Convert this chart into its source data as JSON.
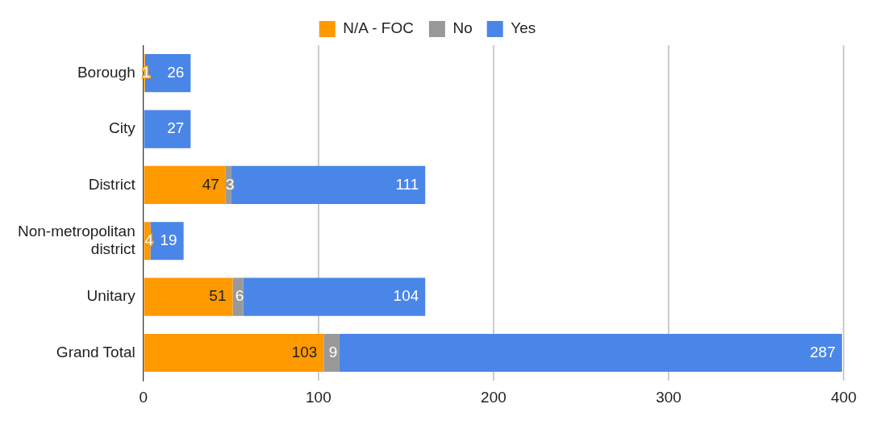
{
  "chart_data": {
    "type": "bar",
    "orientation": "horizontal",
    "stacked": true,
    "categories": [
      "Borough",
      "City",
      "District",
      "Non-metropolitan\ndistrict",
      "Unitary",
      "Grand Total"
    ],
    "series": [
      {
        "name": "N/A - FOC",
        "color": "#ff9900",
        "values": [
          1,
          null,
          47,
          4,
          51,
          103
        ]
      },
      {
        "name": "No",
        "color": "#999999",
        "values": [
          null,
          null,
          3,
          null,
          6,
          9
        ]
      },
      {
        "name": "Yes",
        "color": "#4a86e8",
        "values": [
          26,
          27,
          111,
          19,
          104,
          287
        ]
      }
    ],
    "xlim": [
      0,
      400
    ],
    "xticks": [
      0,
      100,
      200,
      300,
      400
    ],
    "grid": "x",
    "legend": "top",
    "data_labels": true
  }
}
